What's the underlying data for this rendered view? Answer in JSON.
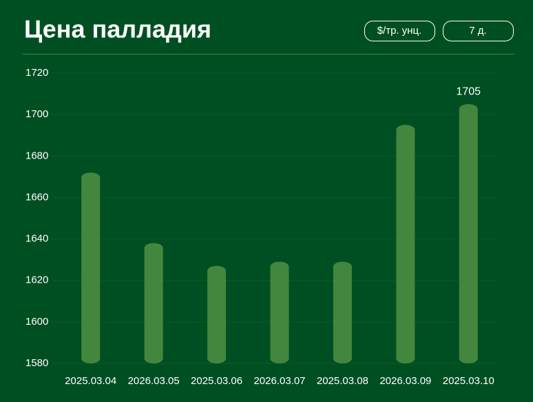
{
  "controls": [
    "$/тр. унц.",
    "7 д."
  ],
  "chart_data": {
    "type": "bar",
    "title": "Цена палладия",
    "categories": [
      "2025.03.04",
      "2026.03.05",
      "2025.03.06",
      "2026.03.07",
      "2025.03.08",
      "2026.03.09",
      "2025.03.10"
    ],
    "values": [
      1672,
      1638,
      1627,
      1629,
      1629,
      1695,
      1705
    ],
    "color": "#43873f",
    "ylim": [
      1580,
      1720
    ],
    "yticks": [
      1580,
      1600,
      1620,
      1640,
      1660,
      1680,
      1700,
      1720
    ],
    "grid": true
  }
}
